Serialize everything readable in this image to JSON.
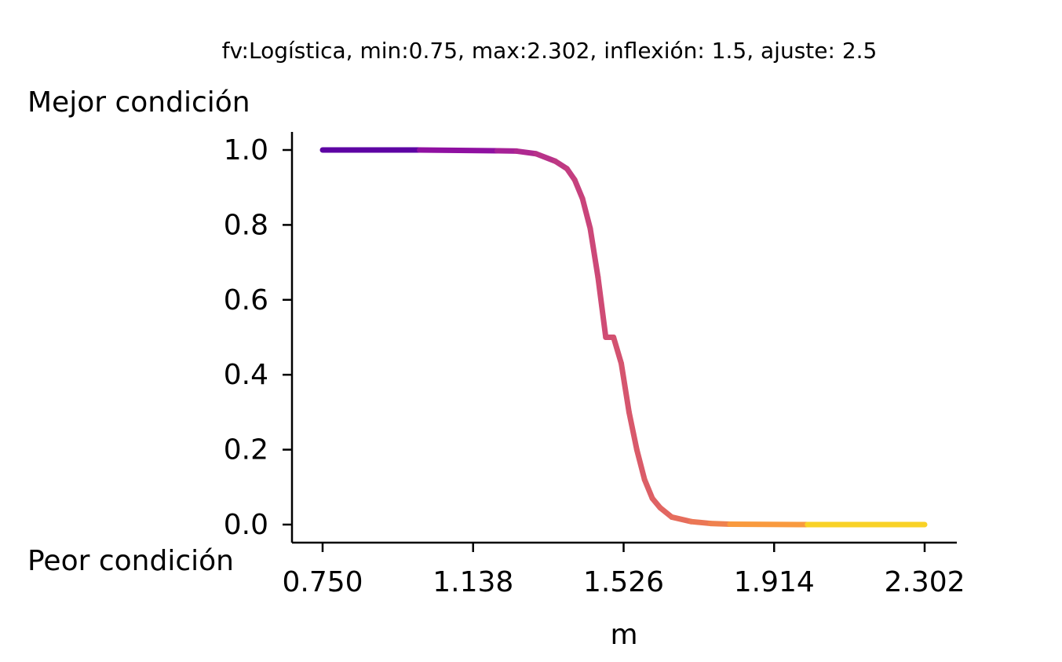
{
  "chart_data": {
    "type": "line",
    "title": "fv:Logística, min:0.75, max:2.302, inflexión: 1.5, ajuste: 2.5",
    "xlabel": "m",
    "ylabel_top": "Mejor condición",
    "ylabel_bottom": "Peor condición",
    "xlim": [
      0.75,
      2.302
    ],
    "ylim": [
      0.0,
      1.0
    ],
    "x_ticks": [
      0.75,
      1.138,
      1.526,
      1.914,
      2.302
    ],
    "x_tick_labels": [
      "0.750",
      "1.138",
      "1.526",
      "1.914",
      "2.302"
    ],
    "y_ticks": [
      0.0,
      0.2,
      0.4,
      0.6,
      0.8,
      1.0
    ],
    "y_tick_labels": [
      "0.0",
      "0.2",
      "0.4",
      "0.6",
      "0.8",
      "1.0"
    ],
    "grid": false,
    "colormap": "plasma",
    "series": [
      {
        "x": [
          0.75,
          1.0,
          1.2,
          1.25,
          1.3,
          1.35,
          1.38,
          1.4,
          1.42,
          1.44,
          1.46,
          1.48,
          1.5,
          1.52,
          1.54,
          1.56,
          1.58,
          1.6,
          1.62,
          1.65,
          1.7,
          1.75,
          1.8,
          2.0,
          2.302
        ],
        "y": [
          1.0,
          1.0,
          0.998,
          0.997,
          0.99,
          0.97,
          0.95,
          0.92,
          0.87,
          0.79,
          0.66,
          0.5,
          0.5,
          0.43,
          0.3,
          0.2,
          0.12,
          0.07,
          0.045,
          0.02,
          0.008,
          0.003,
          0.001,
          0.0,
          0.0
        ]
      }
    ]
  }
}
